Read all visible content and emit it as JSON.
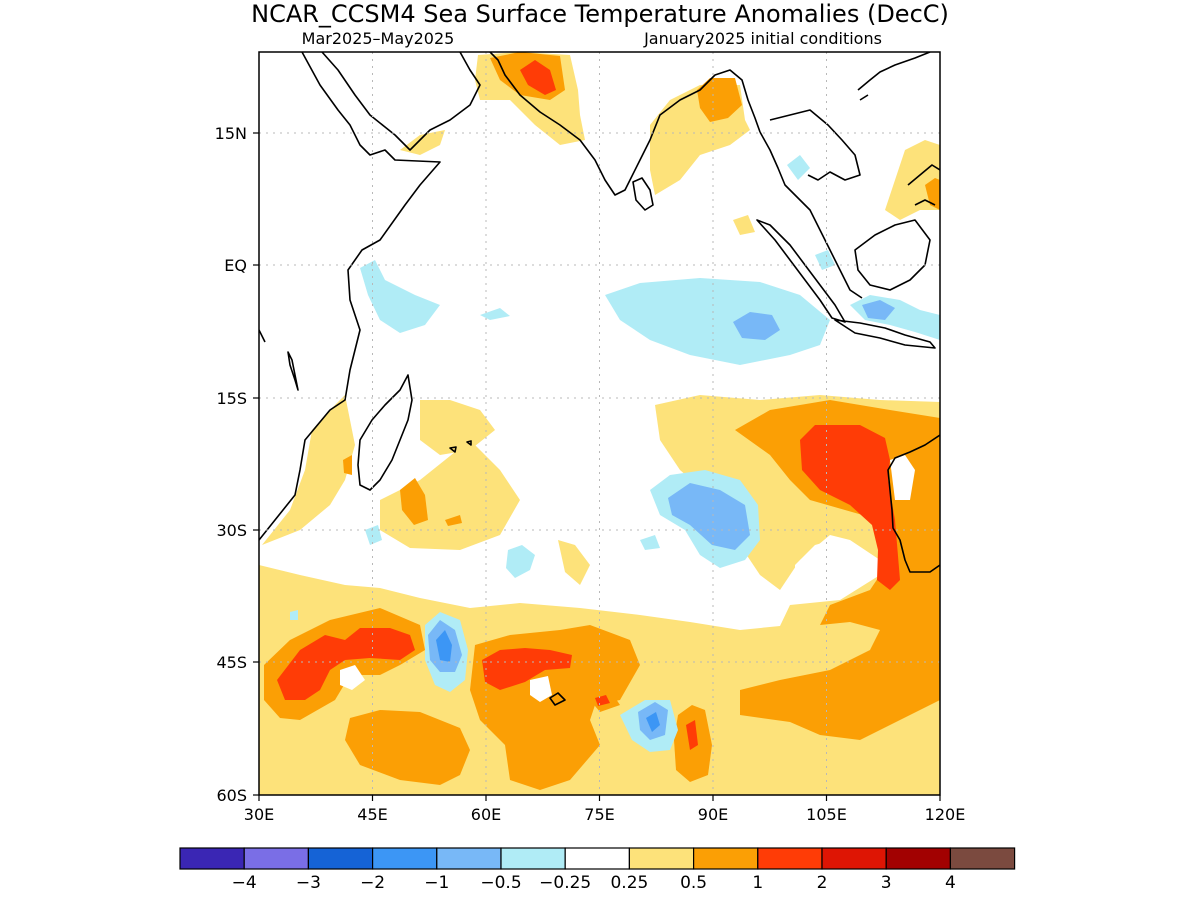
{
  "title": "NCAR_CCSM4 Sea Surface Temperature Anomalies (DecC)",
  "subtitle_left": "Mar2025–May2025",
  "subtitle_right": "January2025 initial conditions",
  "axes": {
    "x_ticks": [
      "30E",
      "45E",
      "60E",
      "75E",
      "90E",
      "105E",
      "120E"
    ],
    "y_ticks": [
      "15N",
      "EQ",
      "15S",
      "30S",
      "45S",
      "60S"
    ]
  },
  "colorbar": {
    "labels": [
      "−4",
      "−3",
      "−2",
      "−1",
      "−0.5",
      "−0.25",
      "0.25",
      "0.5",
      "1",
      "2",
      "3",
      "4"
    ],
    "colors": [
      "#3a26b4",
      "#7a6ee6",
      "#1563d6",
      "#3c96f5",
      "#78b8f7",
      "#b0ecf6",
      "#ffffff",
      "#fde27a",
      "#fb9f05",
      "#ff3c06",
      "#de1504",
      "#a20101",
      "#7b4a3f"
    ]
  },
  "chart_data": {
    "type": "heatmap",
    "title": "NCAR_CCSM4 Sea Surface Temperature Anomalies (DecC)",
    "subtitle": "Mar2025–May2025 | January2025 initial conditions",
    "xlim": [
      "30E",
      "120E"
    ],
    "ylim": [
      "60S",
      "24N"
    ],
    "x_ticks": [
      "30E",
      "45E",
      "60E",
      "75E",
      "90E",
      "105E",
      "120E"
    ],
    "y_ticks": [
      "15N",
      "EQ",
      "15S",
      "30S",
      "45S",
      "60S"
    ],
    "grid": true,
    "colorbar_levels": [
      -4,
      -3,
      -2,
      -1,
      -0.5,
      -0.25,
      0.25,
      0.5,
      1,
      2,
      3,
      4
    ],
    "colors": {
      "<-4": "#3a26b4",
      "-4 to -3": "#7a6ee6",
      "-3 to -2": "#1563d6",
      "-2 to -1": "#3c96f5",
      "-1 to -0.5": "#78b8f7",
      "-0.5 to -0.25": "#b0ecf6",
      "-0.25 to 0.25": "#ffffff",
      "0.25 to 0.5": "#fde27a",
      "0.5 to 1": "#fb9f05",
      "1 to 2": "#ff3c06",
      "2 to 3": "#de1504",
      "3 to 4": "#a20101",
      ">4": "#7b4a3f"
    }
  }
}
